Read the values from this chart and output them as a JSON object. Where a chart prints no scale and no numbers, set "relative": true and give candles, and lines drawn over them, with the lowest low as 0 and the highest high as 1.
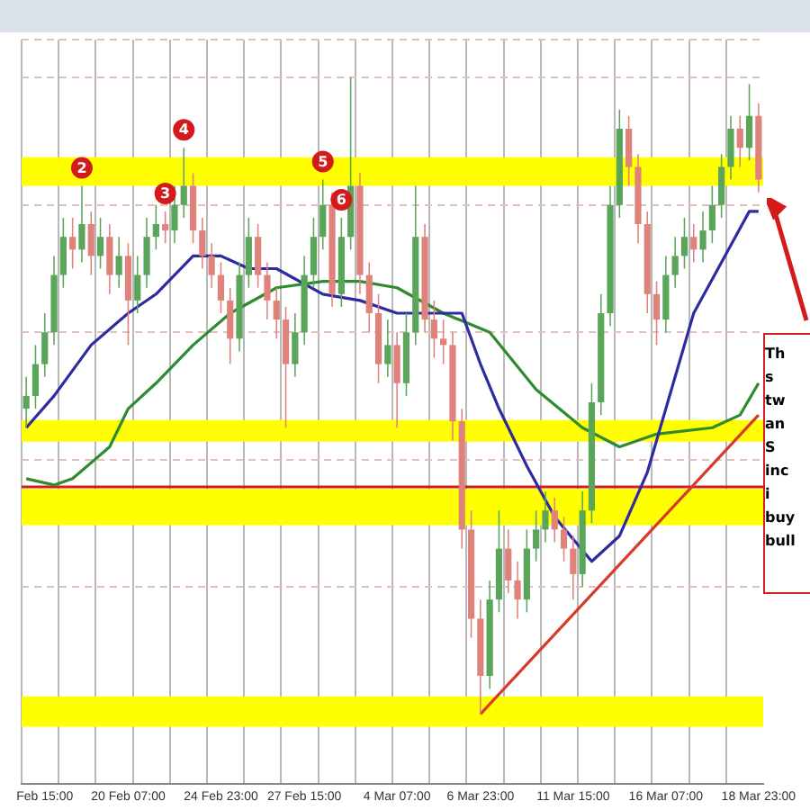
{
  "chart_data": {
    "type": "candlestick",
    "relative": true,
    "grid": true,
    "categories": [
      null,
      null,
      "Feb 15:00",
      null,
      null,
      null,
      null,
      null,
      null,
      null,
      null,
      "20 Feb 07:00",
      null,
      null,
      null,
      null,
      null,
      null,
      null,
      null,
      null,
      "24 Feb 23:00",
      null,
      null,
      null,
      null,
      null,
      null,
      null,
      null,
      "27 Feb 15:00",
      null,
      null,
      null,
      null,
      null,
      null,
      null,
      null,
      null,
      "4 Mar 07:00",
      null,
      null,
      null,
      null,
      null,
      null,
      null,
      null,
      "6 Mar 23:00",
      null,
      null,
      null,
      null,
      null,
      null,
      null,
      null,
      null,
      "11 Mar 15:00",
      null,
      null,
      null,
      null,
      null,
      null,
      null,
      null,
      null,
      "16 Mar 07:00",
      null,
      null,
      null,
      null,
      null,
      null,
      null,
      null,
      null,
      "18 Mar 23:00"
    ],
    "series": [
      {
        "ohlc": [
          [
            0.48,
            0.53,
            0.45,
            0.5
          ],
          [
            0.5,
            0.58,
            0.48,
            0.55
          ],
          [
            0.55,
            0.63,
            0.53,
            0.6
          ],
          [
            0.6,
            0.72,
            0.58,
            0.69
          ],
          [
            0.69,
            0.78,
            0.67,
            0.75
          ],
          [
            0.75,
            0.78,
            0.7,
            0.73
          ],
          [
            0.73,
            0.83,
            0.71,
            0.77
          ],
          [
            0.77,
            0.79,
            0.69,
            0.72
          ],
          [
            0.72,
            0.78,
            0.7,
            0.75
          ],
          [
            0.75,
            0.77,
            0.66,
            0.69
          ],
          [
            0.69,
            0.75,
            0.67,
            0.72
          ],
          [
            0.72,
            0.74,
            0.58,
            0.65
          ],
          [
            0.65,
            0.72,
            0.63,
            0.69
          ],
          [
            0.69,
            0.78,
            0.67,
            0.75
          ],
          [
            0.75,
            0.8,
            0.73,
            0.77
          ],
          [
            0.77,
            0.79,
            0.74,
            0.76
          ],
          [
            0.76,
            0.83,
            0.74,
            0.8
          ],
          [
            0.8,
            0.89,
            0.78,
            0.83
          ],
          [
            0.83,
            0.85,
            0.74,
            0.76
          ],
          [
            0.76,
            0.78,
            0.7,
            0.72
          ],
          [
            0.72,
            0.74,
            0.67,
            0.69
          ],
          [
            0.69,
            0.71,
            0.63,
            0.65
          ],
          [
            0.65,
            0.67,
            0.55,
            0.59
          ],
          [
            0.59,
            0.71,
            0.57,
            0.69
          ],
          [
            0.69,
            0.78,
            0.67,
            0.75
          ],
          [
            0.75,
            0.77,
            0.67,
            0.69
          ],
          [
            0.69,
            0.71,
            0.62,
            0.65
          ],
          [
            0.65,
            0.67,
            0.59,
            0.62
          ],
          [
            0.62,
            0.64,
            0.45,
            0.55
          ],
          [
            0.55,
            0.63,
            0.53,
            0.6
          ],
          [
            0.6,
            0.72,
            0.58,
            0.69
          ],
          [
            0.69,
            0.78,
            0.67,
            0.75
          ],
          [
            0.75,
            0.84,
            0.73,
            0.8
          ],
          [
            0.8,
            0.82,
            0.64,
            0.66
          ],
          [
            0.66,
            0.78,
            0.64,
            0.75
          ],
          [
            0.75,
            1.0,
            0.73,
            0.83
          ],
          [
            0.83,
            0.85,
            0.66,
            0.69
          ],
          [
            0.69,
            0.71,
            0.6,
            0.63
          ],
          [
            0.63,
            0.66,
            0.52,
            0.55
          ],
          [
            0.55,
            0.62,
            0.53,
            0.58
          ],
          [
            0.58,
            0.6,
            0.45,
            0.52
          ],
          [
            0.52,
            0.63,
            0.5,
            0.6
          ],
          [
            0.6,
            0.83,
            0.58,
            0.75
          ],
          [
            0.75,
            0.77,
            0.6,
            0.62
          ],
          [
            0.62,
            0.65,
            0.56,
            0.59
          ],
          [
            0.59,
            0.62,
            0.55,
            0.58
          ],
          [
            0.58,
            0.6,
            0.43,
            0.46
          ],
          [
            0.46,
            0.48,
            0.26,
            0.29
          ],
          [
            0.29,
            0.32,
            0.12,
            0.15
          ],
          [
            0.15,
            0.18,
            0.0,
            0.06
          ],
          [
            0.06,
            0.21,
            0.04,
            0.18
          ],
          [
            0.18,
            0.32,
            0.16,
            0.26
          ],
          [
            0.26,
            0.29,
            0.19,
            0.21
          ],
          [
            0.21,
            0.24,
            0.15,
            0.18
          ],
          [
            0.18,
            0.29,
            0.16,
            0.26
          ],
          [
            0.26,
            0.32,
            0.24,
            0.29
          ],
          [
            0.29,
            0.35,
            0.27,
            0.32
          ],
          [
            0.32,
            0.34,
            0.27,
            0.29
          ],
          [
            0.29,
            0.31,
            0.24,
            0.26
          ],
          [
            0.26,
            0.28,
            0.18,
            0.22
          ],
          [
            0.22,
            0.35,
            0.2,
            0.32
          ],
          [
            0.32,
            0.52,
            0.3,
            0.49
          ],
          [
            0.49,
            0.66,
            0.47,
            0.63
          ],
          [
            0.63,
            0.83,
            0.61,
            0.8
          ],
          [
            0.8,
            0.95,
            0.78,
            0.92
          ],
          [
            0.92,
            0.94,
            0.83,
            0.86
          ],
          [
            0.86,
            0.88,
            0.74,
            0.77
          ],
          [
            0.77,
            0.79,
            0.63,
            0.66
          ],
          [
            0.66,
            0.68,
            0.58,
            0.62
          ],
          [
            0.62,
            0.72,
            0.6,
            0.69
          ],
          [
            0.69,
            0.75,
            0.67,
            0.72
          ],
          [
            0.72,
            0.78,
            0.7,
            0.75
          ],
          [
            0.75,
            0.77,
            0.71,
            0.73
          ],
          [
            0.73,
            0.79,
            0.71,
            0.76
          ],
          [
            0.76,
            0.83,
            0.74,
            0.8
          ],
          [
            0.8,
            0.88,
            0.78,
            0.86
          ],
          [
            0.86,
            0.94,
            0.84,
            0.92
          ],
          [
            0.92,
            0.94,
            0.86,
            0.89
          ],
          [
            0.89,
            0.99,
            0.87,
            0.94
          ],
          [
            0.94,
            0.96,
            0.82,
            0.84
          ]
        ],
        "colors": [
          "#5aa55a",
          "#5aa55a",
          "#5aa55a",
          "#5aa55a",
          "#5aa55a",
          "#e0827c",
          "#5aa55a",
          "#e0827c",
          "#5aa55a",
          "#e0827c",
          "#5aa55a",
          "#e0827c",
          "#5aa55a",
          "#5aa55a",
          "#5aa55a",
          "#e0827c",
          "#5aa55a",
          "#5aa55a",
          "#e0827c",
          "#e0827c",
          "#e0827c",
          "#e0827c",
          "#e0827c",
          "#5aa55a",
          "#5aa55a",
          "#e0827c",
          "#e0827c",
          "#e0827c",
          "#e0827c",
          "#5aa55a",
          "#5aa55a",
          "#5aa55a",
          "#5aa55a",
          "#e0827c",
          "#5aa55a",
          "#5aa55a",
          "#e0827c",
          "#e0827c",
          "#e0827c",
          "#5aa55a",
          "#e0827c",
          "#5aa55a",
          "#5aa55a",
          "#e0827c",
          "#e0827c",
          "#e0827c",
          "#e0827c",
          "#e0827c",
          "#e0827c",
          "#e0827c",
          "#5aa55a",
          "#5aa55a",
          "#e0827c",
          "#e0827c",
          "#5aa55a",
          "#5aa55a",
          "#5aa55a",
          "#e0827c",
          "#e0827c",
          "#e0827c",
          "#5aa55a",
          "#5aa55a",
          "#5aa55a",
          "#5aa55a",
          "#5aa55a",
          "#e0827c",
          "#e0827c",
          "#e0827c",
          "#e0827c",
          "#5aa55a",
          "#5aa55a",
          "#5aa55a",
          "#e0827c",
          "#5aa55a",
          "#5aa55a",
          "#5aa55a",
          "#5aa55a",
          "#e0827c",
          "#5aa55a",
          "#e0827c"
        ],
        "value_labels": [
          null,
          null,
          null,
          null,
          null,
          null,
          "2",
          null,
          null,
          null,
          null,
          null,
          null,
          null,
          null,
          "3",
          null,
          "4",
          null,
          null,
          null,
          null,
          null,
          null,
          null,
          null,
          null,
          null,
          null,
          null,
          null,
          null,
          "5",
          null,
          "6",
          null,
          null,
          null,
          null,
          null,
          null,
          null,
          null,
          null,
          null,
          null,
          null,
          null,
          null,
          null,
          null,
          null,
          null,
          null,
          null,
          null,
          null,
          null,
          null,
          null,
          null,
          null,
          null,
          null,
          null,
          null,
          null,
          null,
          null,
          null,
          null,
          null,
          null,
          null,
          null,
          null,
          null,
          null,
          null,
          null
        ]
      },
      {
        "type": "line",
        "color": "#2c2ca0",
        "values": [
          0.45,
          null,
          null,
          0.5,
          null,
          null,
          null,
          0.58,
          null,
          null,
          null,
          0.63,
          null,
          null,
          0.66,
          null,
          null,
          null,
          0.72,
          null,
          null,
          0.72,
          null,
          null,
          0.7,
          null,
          null,
          0.7,
          null,
          null,
          null,
          null,
          0.66,
          null,
          null,
          null,
          0.65,
          null,
          null,
          null,
          0.63,
          null,
          null,
          null,
          null,
          0.63,
          null,
          0.63,
          null,
          0.55,
          null,
          0.48,
          null,
          null,
          0.39,
          null,
          null,
          0.31,
          null,
          null,
          null,
          0.24,
          null,
          null,
          0.28,
          null,
          null,
          0.38,
          null,
          0.48,
          null,
          null,
          0.63,
          null,
          null,
          0.71,
          null,
          null,
          0.79,
          0.79
        ]
      },
      {
        "type": "line",
        "color": "#2e8b2e",
        "values": [
          0.37,
          null,
          null,
          0.36,
          null,
          0.37,
          null,
          null,
          null,
          0.42,
          null,
          0.48,
          null,
          null,
          0.52,
          null,
          null,
          null,
          0.58,
          null,
          null,
          null,
          0.63,
          null,
          null,
          null,
          null,
          0.67,
          null,
          null,
          null,
          null,
          0.68,
          null,
          null,
          null,
          0.68,
          null,
          null,
          null,
          0.67,
          null,
          null,
          null,
          null,
          0.63,
          null,
          null,
          null,
          null,
          0.6,
          null,
          null,
          null,
          null,
          0.51,
          null,
          null,
          null,
          null,
          0.45,
          null,
          null,
          null,
          0.42,
          null,
          null,
          null,
          0.44,
          null,
          null,
          null,
          null,
          null,
          0.45,
          null,
          null,
          0.47,
          null,
          0.52
        ]
      },
      {
        "type": "line",
        "color": "#d83a2a",
        "values": [
          null,
          null,
          null,
          null,
          null,
          null,
          null,
          null,
          null,
          null,
          null,
          null,
          null,
          null,
          null,
          null,
          null,
          null,
          null,
          null,
          null,
          null,
          null,
          null,
          null,
          null,
          null,
          null,
          null,
          null,
          null,
          null,
          null,
          null,
          null,
          null,
          null,
          null,
          null,
          null,
          null,
          null,
          null,
          null,
          null,
          null,
          null,
          null,
          null,
          0.0,
          null,
          null,
          null,
          null,
          null,
          null,
          null,
          null,
          null,
          null,
          null,
          null,
          null,
          null,
          null,
          null,
          null,
          null,
          null,
          null,
          null,
          null,
          null,
          null,
          null,
          null,
          null,
          null,
          null,
          0.47
        ]
      }
    ],
    "bands": [
      {
        "axis": "y",
        "from": 0.83,
        "to": 0.875,
        "color": "#ffff00"
      },
      {
        "axis": "y",
        "from": 0.428,
        "to": 0.462,
        "color": "#ffff00"
      },
      {
        "axis": "y",
        "from": 0.297,
        "to": 0.354,
        "color": "#ffff00"
      },
      {
        "axis": "y",
        "from": -0.02,
        "to": 0.028,
        "color": "#ffff00"
      }
    ],
    "ref_lines": [
      {
        "axis": "y",
        "value": 0.357,
        "color": "#cc2020"
      }
    ],
    "annotations": [
      "Th\ns\ntw\nan\nS\ninc\ni\nbuy\nbull"
    ]
  }
}
